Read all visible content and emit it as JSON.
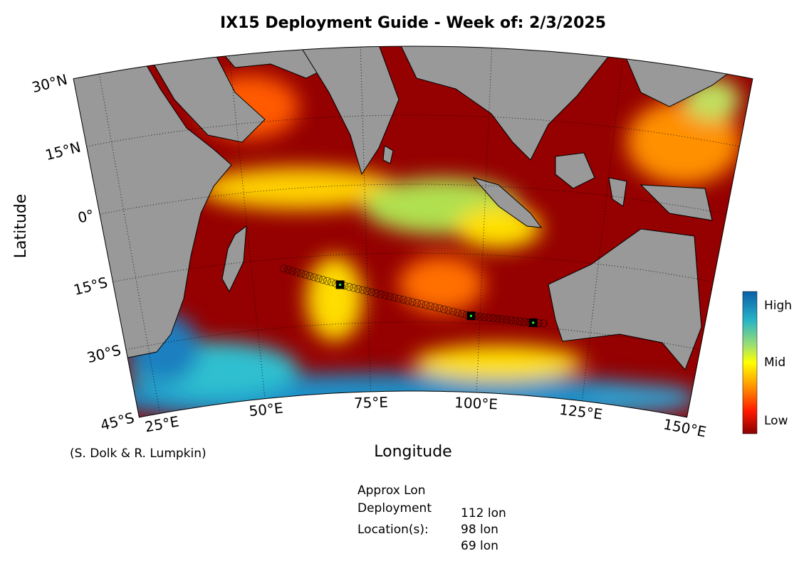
{
  "chart_data": {
    "type": "map",
    "title": "IX15 Deployment Guide - Week of: 2/3/2025",
    "x_label": "Longitude",
    "y_label": "Latitude",
    "credit": "(S. Dolk & R. Lumpkin)",
    "xlim": [
      20,
      150
    ],
    "ylim": [
      -45,
      30
    ],
    "xticks": [
      {
        "value": 25,
        "label": "25°E"
      },
      {
        "value": 50,
        "label": "50°E"
      },
      {
        "value": 75,
        "label": "75°E"
      },
      {
        "value": 100,
        "label": "100°E"
      },
      {
        "value": 125,
        "label": "125°E"
      },
      {
        "value": 150,
        "label": "150°E"
      }
    ],
    "yticks": [
      {
        "value": 30,
        "label": "30°N"
      },
      {
        "value": 15,
        "label": "15°N"
      },
      {
        "value": 0,
        "label": "0°"
      },
      {
        "value": -15,
        "label": "15°S"
      },
      {
        "value": -30,
        "label": "30°S"
      },
      {
        "value": -45,
        "label": "45°S"
      }
    ],
    "grid": true,
    "colorbar_labels": [
      "High",
      "Mid",
      "Low"
    ],
    "track": {
      "lon": [
        57,
        69,
        98,
        112,
        115.5
      ],
      "lat": [
        -17.2,
        -21.5,
        -28.4,
        -29.1,
        -29
      ]
    },
    "deployments": {
      "lon": [
        112,
        98,
        69
      ],
      "lat": [
        -29.1,
        -28.4,
        -21.5
      ]
    },
    "note_heading": [
      "Approx Lon",
      "Deployment",
      "Location(s):"
    ],
    "note_locations": [
      "112 lon",
      "98 lon",
      "69 lon"
    ]
  }
}
